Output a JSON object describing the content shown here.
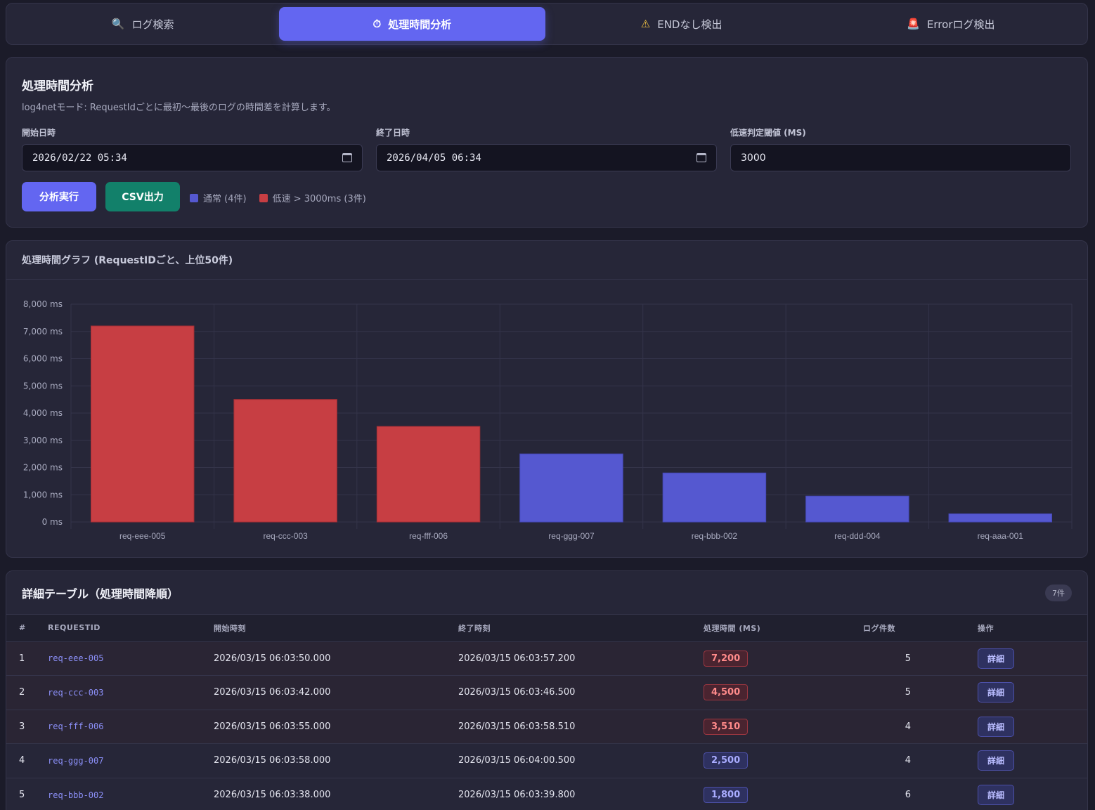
{
  "tabs": [
    {
      "icon": "search-icon",
      "glyph": "🔍",
      "label": "ログ検索",
      "active": false
    },
    {
      "icon": "stopwatch-icon",
      "glyph": "⏱",
      "label": "処理時間分析",
      "active": true
    },
    {
      "icon": "warning-icon",
      "glyph": "⚠",
      "label": "ENDなし検出",
      "active": false
    },
    {
      "icon": "siren-icon",
      "glyph": "🚨",
      "label": "Errorログ検出",
      "active": false
    }
  ],
  "form": {
    "title": "処理時間分析",
    "description": "log4netモード: RequestIdごとに最初〜最後のログの時間差を計算します。",
    "start_label": "開始日時",
    "start_value": "2026/02/22 05:34",
    "end_label": "終了日時",
    "end_value": "2026/04/05 06:34",
    "threshold_label": "低速判定閾値 (MS)",
    "threshold_value": "3000",
    "run_label": "分析実行",
    "csv_label": "CSV出力",
    "legend_normal": "通常 (4件)",
    "legend_slow": "低速 > 3000ms (3件)"
  },
  "chart": {
    "title": "処理時間グラフ (RequestIDごと、上位50件)"
  },
  "colors": {
    "slow": "#c73e43",
    "normal": "#5558d0",
    "accent": "#6366f1"
  },
  "chart_data": {
    "type": "bar",
    "categories": [
      "req-eee-005",
      "req-ccc-003",
      "req-fff-006",
      "req-ggg-007",
      "req-bbb-002",
      "req-ddd-004",
      "req-aaa-001"
    ],
    "values": [
      7200,
      4500,
      3510,
      2500,
      1800,
      950,
      300
    ],
    "slow": [
      true,
      true,
      true,
      false,
      false,
      false,
      false
    ],
    "ylim": [
      0,
      8000
    ],
    "yticks": [
      "0 ms",
      "1,000 ms",
      "2,000 ms",
      "3,000 ms",
      "4,000 ms",
      "5,000 ms",
      "6,000 ms",
      "7,000 ms",
      "8,000 ms"
    ],
    "ytick_values": [
      0,
      1000,
      2000,
      3000,
      4000,
      5000,
      6000,
      7000,
      8000
    ],
    "grid": true,
    "legend": "none"
  },
  "table": {
    "title": "詳細テーブル（処理時間降順）",
    "count": "7件",
    "headers": [
      "#",
      "REQUESTID",
      "開始時刻",
      "終了時刻",
      "処理時間 (MS)",
      "ログ件数",
      "操作"
    ],
    "detail_label": "詳細",
    "rows": [
      {
        "no": "1",
        "id": "req-eee-005",
        "start": "2026/03/15 06:03:50.000",
        "end": "2026/03/15 06:03:57.200",
        "dur": "7,200",
        "slow": true,
        "logs": "5"
      },
      {
        "no": "2",
        "id": "req-ccc-003",
        "start": "2026/03/15 06:03:42.000",
        "end": "2026/03/15 06:03:46.500",
        "dur": "4,500",
        "slow": true,
        "logs": "5"
      },
      {
        "no": "3",
        "id": "req-fff-006",
        "start": "2026/03/15 06:03:55.000",
        "end": "2026/03/15 06:03:58.510",
        "dur": "3,510",
        "slow": true,
        "logs": "4"
      },
      {
        "no": "4",
        "id": "req-ggg-007",
        "start": "2026/03/15 06:03:58.000",
        "end": "2026/03/15 06:04:00.500",
        "dur": "2,500",
        "slow": false,
        "logs": "4"
      },
      {
        "no": "5",
        "id": "req-bbb-002",
        "start": "2026/03/15 06:03:38.000",
        "end": "2026/03/15 06:03:39.800",
        "dur": "1,800",
        "slow": false,
        "logs": "6"
      }
    ]
  }
}
